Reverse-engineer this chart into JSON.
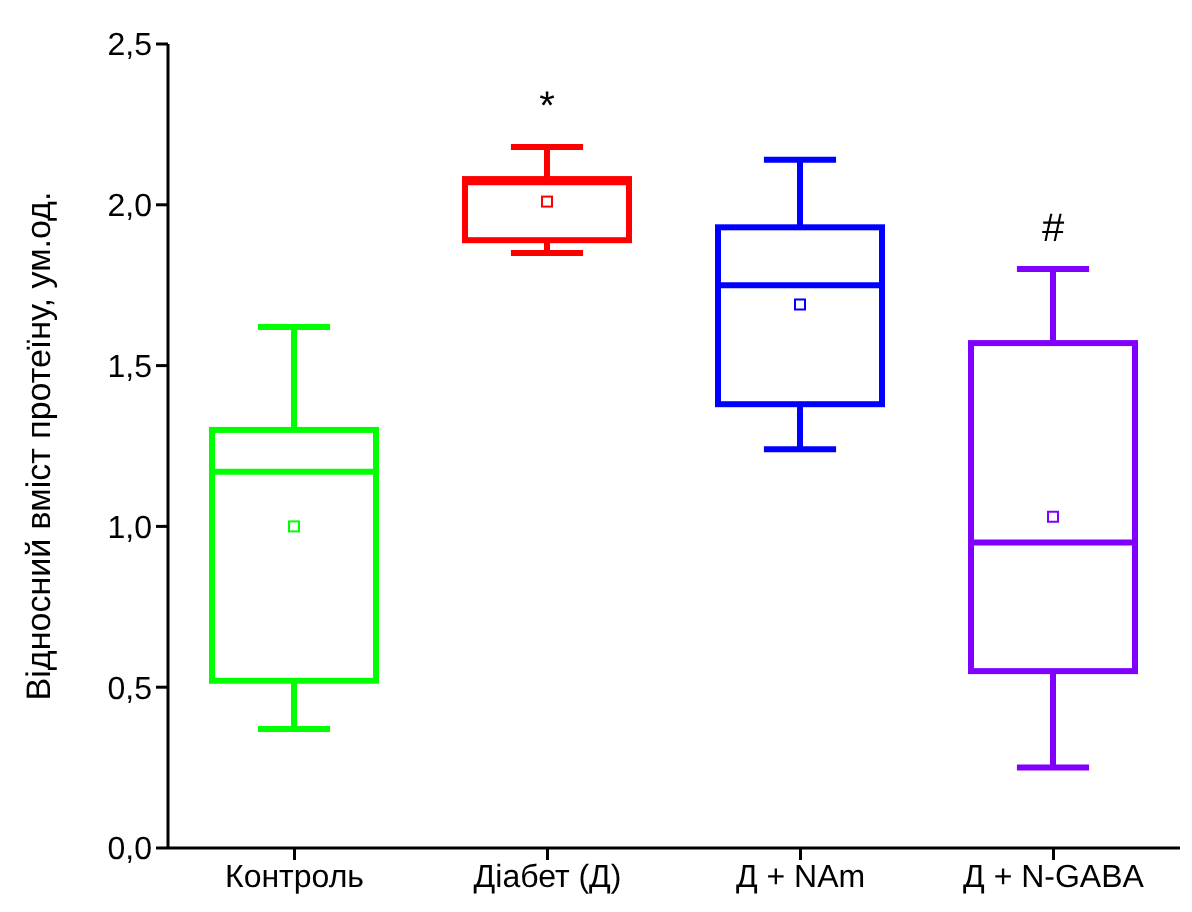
{
  "chart_data": {
    "type": "box",
    "ylabel": "Відносний вміст протеїну, ум.од.",
    "categories": [
      "Контроль",
      "Діабет (Д)",
      "Д + NAm",
      "Д + N-GABA"
    ],
    "boxes": [
      {
        "low": 0.37,
        "q1": 0.52,
        "median": 1.17,
        "q3": 1.3,
        "high": 1.62,
        "mean": 1.0
      },
      {
        "low": 1.85,
        "q1": 1.89,
        "median": 2.07,
        "q3": 2.08,
        "high": 2.18,
        "mean": 2.01
      },
      {
        "low": 1.24,
        "q1": 1.38,
        "median": 1.75,
        "q3": 1.93,
        "high": 2.14,
        "mean": 1.69
      },
      {
        "low": 0.25,
        "q1": 0.55,
        "median": 0.95,
        "q3": 1.57,
        "high": 1.8,
        "mean": 1.03
      }
    ],
    "colors": [
      "#00ff00",
      "#ff0000",
      "#0000ff",
      "#8000ff"
    ],
    "ylim": [
      0,
      2.5
    ],
    "yticks": [
      {
        "value": 0,
        "label": "0,0"
      },
      {
        "value": 0.5,
        "label": "0,5"
      },
      {
        "value": 1,
        "label": "1,0"
      },
      {
        "value": 1.5,
        "label": "1,5"
      },
      {
        "value": 2,
        "label": "2,0"
      },
      {
        "value": 2.5,
        "label": "2,5"
      }
    ],
    "value_labels": [
      null,
      "*",
      null,
      "#"
    ],
    "grid": false,
    "legend": false
  }
}
